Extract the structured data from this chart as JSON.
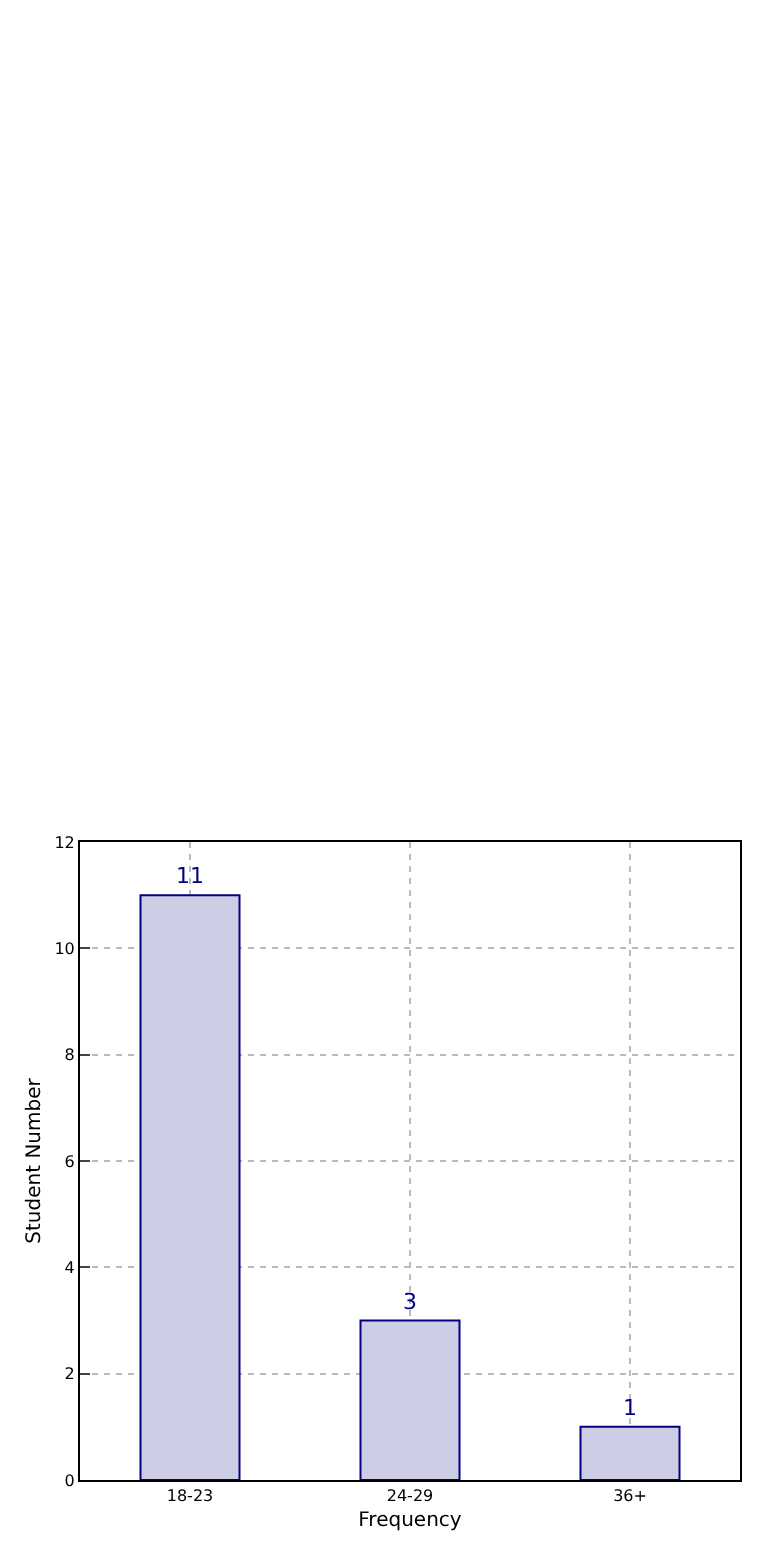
{
  "chart_data": {
    "type": "bar",
    "xlabel": "Frequency",
    "ylabel": "Student Number",
    "categories": [
      "18-23",
      "24-29",
      "36+"
    ],
    "values": [
      11,
      3,
      1
    ],
    "color": "#ccccE5",
    "data_labels": true,
    "ylim": [
      0,
      12
    ],
    "yticks": [
      0,
      2,
      4,
      6,
      8,
      10,
      12
    ],
    "grid": true,
    "legend": false
  }
}
